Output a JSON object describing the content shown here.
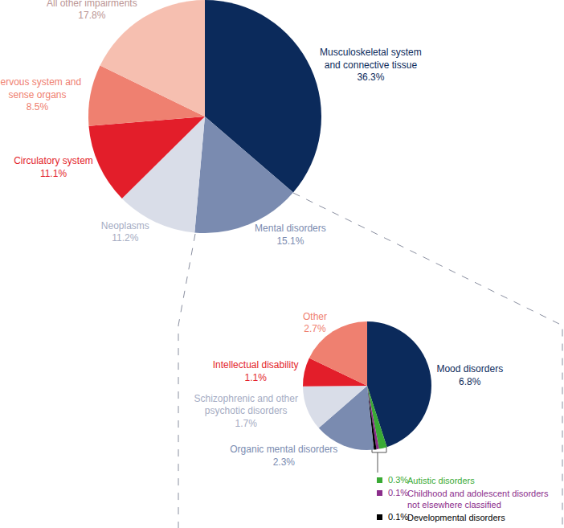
{
  "chart_data": [
    {
      "type": "pie",
      "categories": [
        "Musculoskeletal system and connective tissue",
        "Mental disorders",
        "Neoplasms",
        "Circulatory system",
        "Nervous system and sense organs",
        "All other impairments"
      ],
      "values": [
        36.3,
        15.1,
        11.2,
        11.1,
        8.5,
        17.8
      ],
      "value_labels": [
        "36.3%",
        "15.1%",
        "11.2%",
        "11.1%",
        "8.5%",
        "17.8%"
      ],
      "colors": [
        "#0b2a5b",
        "#7a8bb0",
        "#d9dde8",
        "#e31e2a",
        "#ef8070",
        "#f6bfb0"
      ],
      "data_labels": true
    },
    {
      "type": "pie",
      "categories": [
        "Mood disorders",
        "Autistic disorders",
        "Childhood and adolescent disorders not elsewhere classified",
        "Developmental disorders",
        "Organic mental disorders",
        "Schizophrenic and other psychotic disorders",
        "Intellectual disability",
        "Other"
      ],
      "values": [
        6.8,
        0.3,
        0.1,
        0.1,
        2.3,
        1.7,
        1.1,
        2.7
      ],
      "value_labels": [
        "6.8%",
        "0.3%",
        "0.1%",
        "0.1%",
        "2.3%",
        "1.7%",
        "1.1%",
        "2.7%"
      ],
      "colors": [
        "#0b2a5b",
        "#3aaa35",
        "#8b2d8b",
        "#000000",
        "#7a8bb0",
        "#d9dde8",
        "#e31e2a",
        "#ef8070"
      ],
      "data_labels": true
    }
  ]
}
